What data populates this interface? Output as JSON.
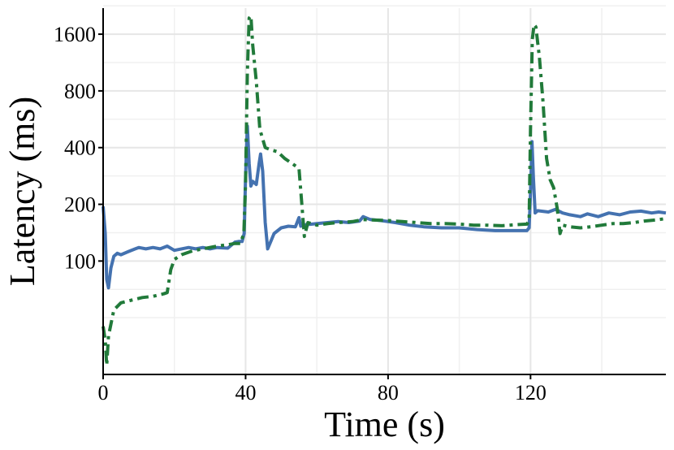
{
  "chart_data": {
    "type": "line",
    "xlabel": "Time (s)",
    "ylabel": "Latency (ms)",
    "xlim": [
      0,
      158
    ],
    "ylim": [
      25,
      2200
    ],
    "yscale": "log2",
    "x_ticks": [
      0,
      40,
      80,
      120
    ],
    "x_tick_labels": [
      "0",
      "40",
      "80",
      "120"
    ],
    "y_ticks": [
      100,
      200,
      400,
      800,
      1600
    ],
    "y_tick_labels": [
      "100",
      "200",
      "400",
      "800",
      "1600"
    ],
    "grid": true,
    "legend": "none",
    "series": [
      {
        "color": "#4472b0",
        "style": "solid",
        "points": [
          [
            0,
            195
          ],
          [
            0.6,
            140
          ],
          [
            1,
            80
          ],
          [
            1.5,
            72
          ],
          [
            2.2,
            92
          ],
          [
            3,
            106
          ],
          [
            4,
            110
          ],
          [
            5,
            108
          ],
          [
            7,
            112
          ],
          [
            9,
            116
          ],
          [
            10,
            118
          ],
          [
            12,
            116
          ],
          [
            14,
            118
          ],
          [
            16,
            116
          ],
          [
            18,
            120
          ],
          [
            20,
            114
          ],
          [
            22,
            116
          ],
          [
            24,
            118
          ],
          [
            26,
            116
          ],
          [
            28,
            118
          ],
          [
            30,
            116
          ],
          [
            32,
            118
          ],
          [
            35,
            117
          ],
          [
            37,
            126
          ],
          [
            38,
            127
          ],
          [
            39,
            127
          ],
          [
            39.6,
            140
          ],
          [
            40,
            280
          ],
          [
            40.5,
            520
          ],
          [
            41,
            330
          ],
          [
            41.5,
            250
          ],
          [
            42,
            265
          ],
          [
            43,
            255
          ],
          [
            43.8,
            330
          ],
          [
            44.2,
            370
          ],
          [
            44.8,
            300
          ],
          [
            45.5,
            160
          ],
          [
            46.2,
            116
          ],
          [
            47,
            126
          ],
          [
            48,
            140
          ],
          [
            50,
            150
          ],
          [
            52,
            153
          ],
          [
            54,
            152
          ],
          [
            55,
            170
          ],
          [
            55.5,
            153
          ],
          [
            57,
            156
          ],
          [
            60,
            158
          ],
          [
            63,
            160
          ],
          [
            66,
            162
          ],
          [
            69,
            160
          ],
          [
            72,
            163
          ],
          [
            73,
            172
          ],
          [
            75,
            166
          ],
          [
            78,
            164
          ],
          [
            82,
            160
          ],
          [
            86,
            155
          ],
          [
            90,
            152
          ],
          [
            95,
            150
          ],
          [
            100,
            150
          ],
          [
            105,
            147
          ],
          [
            110,
            145
          ],
          [
            115,
            145
          ],
          [
            119,
            145
          ],
          [
            119.6,
            150
          ],
          [
            120,
            230
          ],
          [
            120.4,
            430
          ],
          [
            120.8,
            280
          ],
          [
            121.3,
            180
          ],
          [
            122,
            185
          ],
          [
            125,
            182
          ],
          [
            127,
            188
          ],
          [
            129,
            180
          ],
          [
            131,
            176
          ],
          [
            134,
            172
          ],
          [
            136,
            178
          ],
          [
            139,
            172
          ],
          [
            142,
            180
          ],
          [
            145,
            176
          ],
          [
            148,
            182
          ],
          [
            151,
            184
          ],
          [
            154,
            180
          ],
          [
            156,
            182
          ],
          [
            158,
            180
          ]
        ]
      },
      {
        "color": "#217a3a",
        "style": "dashdot",
        "points": [
          [
            0,
            45
          ],
          [
            0.6,
            38
          ],
          [
            1,
            28
          ],
          [
            1.5,
            40
          ],
          [
            3,
            55
          ],
          [
            5,
            60
          ],
          [
            8,
            62
          ],
          [
            11,
            64
          ],
          [
            14,
            65
          ],
          [
            17,
            67
          ],
          [
            18,
            68
          ],
          [
            19,
            90
          ],
          [
            20,
            102
          ],
          [
            22,
            108
          ],
          [
            25,
            113
          ],
          [
            28,
            116
          ],
          [
            32,
            120
          ],
          [
            35,
            122
          ],
          [
            37,
            124
          ],
          [
            38.5,
            124
          ],
          [
            39.5,
            140
          ],
          [
            40,
            260
          ],
          [
            40.5,
            1000
          ],
          [
            41,
            1950
          ],
          [
            41.5,
            2000
          ],
          [
            42,
            1400
          ],
          [
            43,
            900
          ],
          [
            44,
            500
          ],
          [
            45.5,
            400
          ],
          [
            47,
            390
          ],
          [
            49,
            380
          ],
          [
            51,
            350
          ],
          [
            53,
            330
          ],
          [
            55,
            310
          ],
          [
            55.8,
            200
          ],
          [
            56.5,
            135
          ],
          [
            57.5,
            160
          ],
          [
            60,
            155
          ],
          [
            63,
            158
          ],
          [
            66,
            160
          ],
          [
            70,
            162
          ],
          [
            73,
            166
          ],
          [
            76,
            165
          ],
          [
            80,
            164
          ],
          [
            84,
            162
          ],
          [
            88,
            160
          ],
          [
            92,
            158
          ],
          [
            96,
            158
          ],
          [
            100,
            157
          ],
          [
            104,
            155
          ],
          [
            108,
            155
          ],
          [
            112,
            154
          ],
          [
            116,
            156
          ],
          [
            119,
            157
          ],
          [
            119.6,
            165
          ],
          [
            120,
            500
          ],
          [
            120.5,
            1500
          ],
          [
            121,
            1800
          ],
          [
            121.5,
            1750
          ],
          [
            122.5,
            1200
          ],
          [
            123.5,
            700
          ],
          [
            124.5,
            350
          ],
          [
            125.5,
            270
          ],
          [
            126.5,
            245
          ],
          [
            127.5,
            190
          ],
          [
            128.3,
            140
          ],
          [
            129,
            155
          ],
          [
            131,
            152
          ],
          [
            134,
            150
          ],
          [
            137,
            152
          ],
          [
            140,
            155
          ],
          [
            143,
            158
          ],
          [
            146,
            158
          ],
          [
            149,
            160
          ],
          [
            152,
            163
          ],
          [
            155,
            165
          ],
          [
            158,
            168
          ]
        ]
      }
    ]
  }
}
